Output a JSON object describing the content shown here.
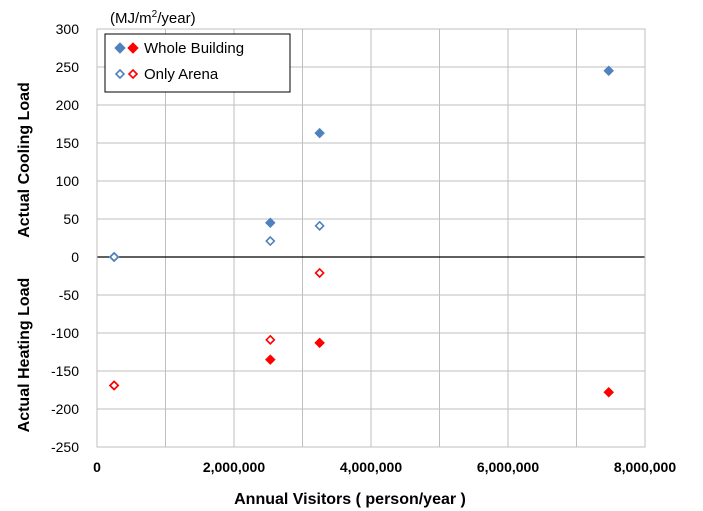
{
  "chart_data": {
    "type": "scatter",
    "unit_label": {
      "pre": "(MJ/m",
      "sup": "2",
      "post": "/year)"
    },
    "xlabel": "Annual Visitors ( person/year )",
    "ylabel_upper": "Actual Cooling Load",
    "ylabel_lower": "Actual Heating Load",
    "xlim": [
      0,
      8000000
    ],
    "ylim": [
      -250,
      300
    ],
    "x_ticks": [
      0,
      1000000,
      2000000,
      3000000,
      4000000,
      5000000,
      6000000,
      7000000,
      8000000
    ],
    "x_tick_labels": [
      "0",
      "",
      "2,000,000",
      "",
      "4,000,000",
      "",
      "6,000,000",
      "",
      "8,000,000"
    ],
    "y_ticks": [
      300,
      250,
      200,
      150,
      100,
      50,
      0,
      -50,
      -100,
      -150,
      -200,
      -250
    ],
    "y_tick_labels": [
      "300",
      "250",
      "200",
      "150",
      "100",
      "50",
      "0",
      "-50",
      "-100",
      "-150",
      "-200",
      "-250"
    ],
    "grid": true,
    "legend_position": "top-left",
    "series": [
      {
        "name": "Whole Building",
        "marker": "filled-diamond",
        "points": [
          {
            "x": 250000,
            "y": 0,
            "color": "#4f81bd"
          },
          {
            "x": 2530000,
            "y": 45,
            "color": "#4f81bd"
          },
          {
            "x": 3250000,
            "y": 163,
            "color": "#4f81bd"
          },
          {
            "x": 7470000,
            "y": 245,
            "color": "#4f81bd"
          },
          {
            "x": 250000,
            "y": -169,
            "color": "#ff0000"
          },
          {
            "x": 2530000,
            "y": -135,
            "color": "#ff0000"
          },
          {
            "x": 3250000,
            "y": -113,
            "color": "#ff0000"
          },
          {
            "x": 7470000,
            "y": -178,
            "color": "#ff0000"
          }
        ]
      },
      {
        "name": "Only Arena",
        "marker": "hollow-diamond",
        "points": [
          {
            "x": 250000,
            "y": 0,
            "color": "#4f81bd"
          },
          {
            "x": 2530000,
            "y": 21,
            "color": "#4f81bd"
          },
          {
            "x": 3250000,
            "y": 41,
            "color": "#4f81bd"
          },
          {
            "x": 250000,
            "y": -169,
            "color": "#ff0000"
          },
          {
            "x": 2530000,
            "y": -109,
            "color": "#ff0000"
          },
          {
            "x": 3250000,
            "y": -21,
            "color": "#ff0000"
          }
        ]
      }
    ],
    "colors": {
      "cooling": "#4f81bd",
      "heating": "#ff0000"
    }
  }
}
